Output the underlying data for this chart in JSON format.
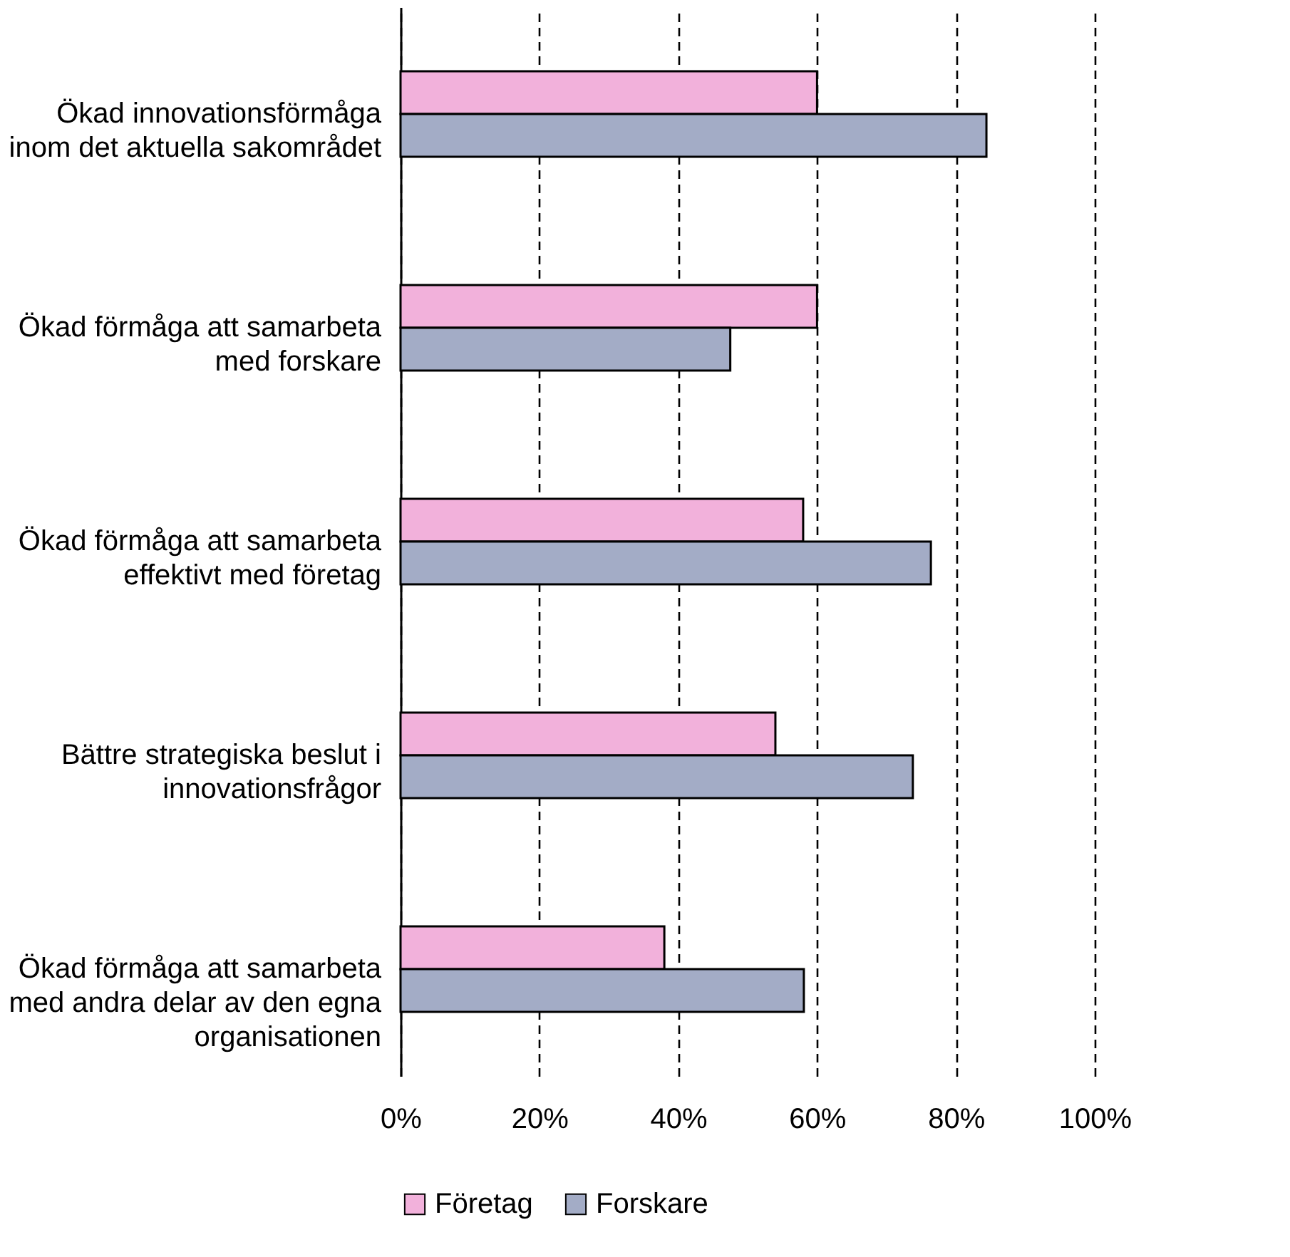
{
  "chart_data": {
    "type": "bar",
    "orientation": "horizontal",
    "categories": [
      "Ökad innovationsförmåga\ninom det aktuella sakområdet",
      "Ökad förmåga att samarbeta\nmed forskare",
      "Ökad förmåga att samarbeta\neffektivt med företag",
      "Bättre strategiska beslut i\ninnovationsfrågor",
      "Ökad förmåga att samarbeta\nmed andra delar av den egna\norganisationen"
    ],
    "series": [
      {
        "name": "Företag",
        "color": "#f2b1db",
        "values": [
          60,
          60,
          58,
          54,
          38
        ]
      },
      {
        "name": "Forskare",
        "color": "#a3acc6",
        "values": [
          84.4,
          47.5,
          76.4,
          73.8,
          58.1
        ]
      }
    ],
    "xlim": [
      0,
      100
    ],
    "xticks": [
      {
        "value": 0,
        "label": "0%"
      },
      {
        "value": 20,
        "label": "20%"
      },
      {
        "value": 40,
        "label": "40%"
      },
      {
        "value": 60,
        "label": "60%"
      },
      {
        "value": 80,
        "label": "80%"
      },
      {
        "value": 100,
        "label": "100%"
      }
    ],
    "grid": "x",
    "line_style": "dashed",
    "legend": "bottom"
  }
}
